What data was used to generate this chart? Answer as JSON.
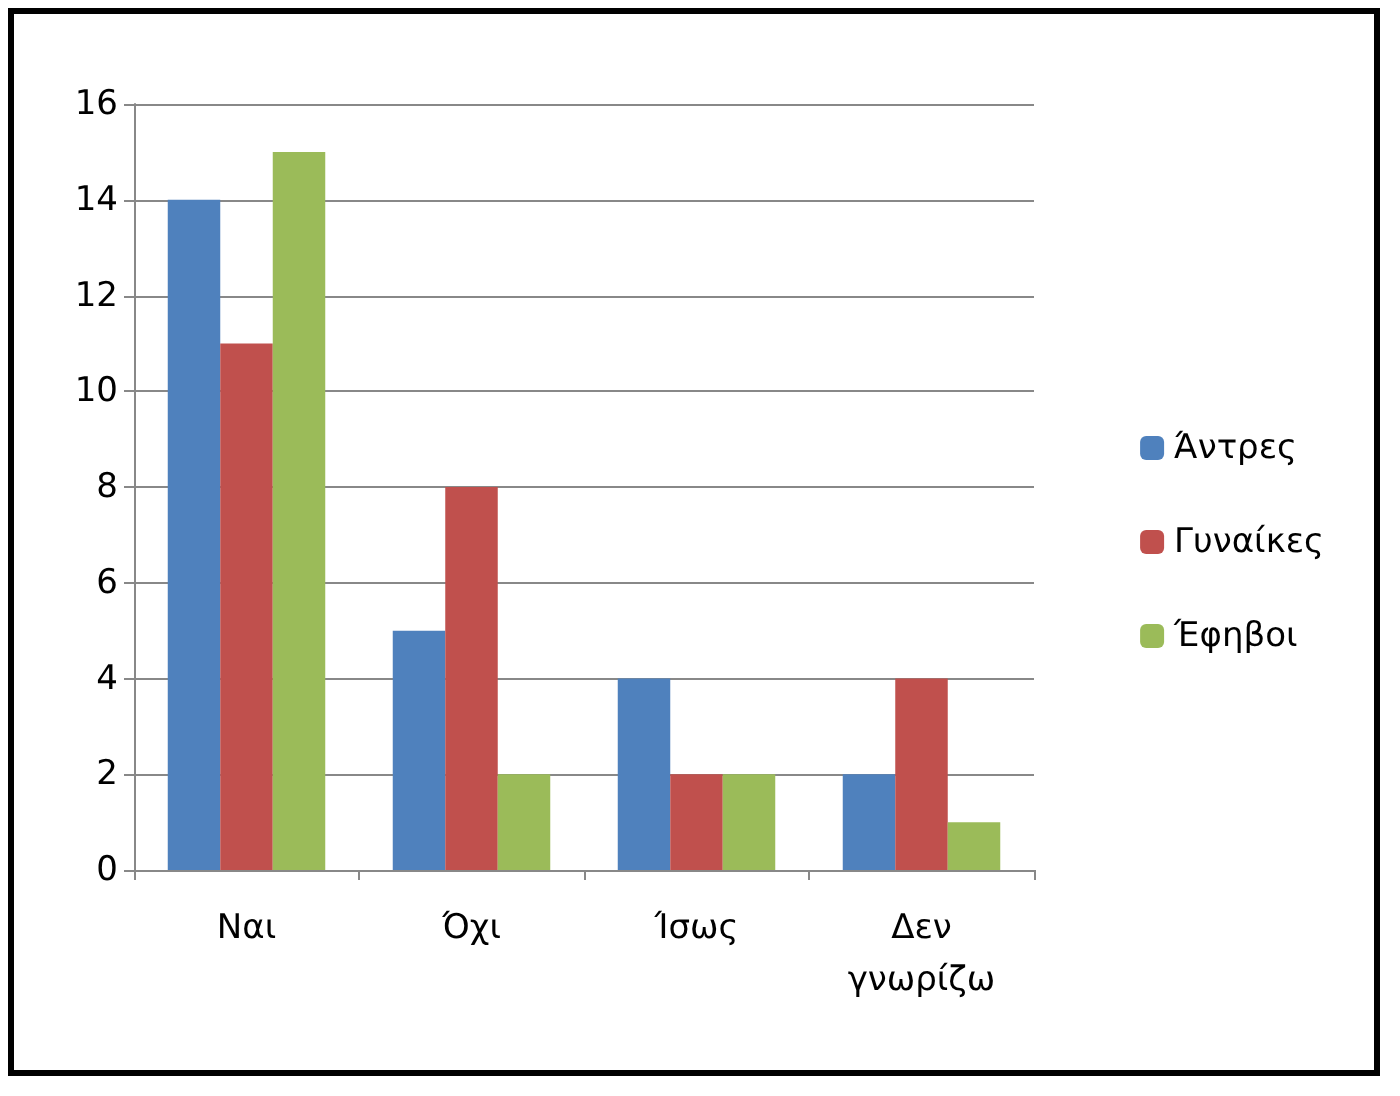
{
  "chart_data": {
    "type": "bar",
    "categories": [
      "Ναι",
      "Όχι",
      "Ίσως",
      "Δεν γνωρίζω"
    ],
    "series": [
      {
        "name": "Άντρες",
        "color": "#4f81bd",
        "values": [
          14,
          5,
          4,
          2
        ]
      },
      {
        "name": "Γυναίκες",
        "color": "#c0504d",
        "values": [
          11,
          8,
          2,
          4
        ]
      },
      {
        "name": "Έφηβοι",
        "color": "#9bbb59",
        "values": [
          15,
          2,
          2,
          1
        ]
      }
    ],
    "ylim": [
      0,
      16
    ],
    "yticks": [
      0,
      2,
      4,
      6,
      8,
      10,
      12,
      14,
      16
    ],
    "grid": "y",
    "legend": "right"
  }
}
